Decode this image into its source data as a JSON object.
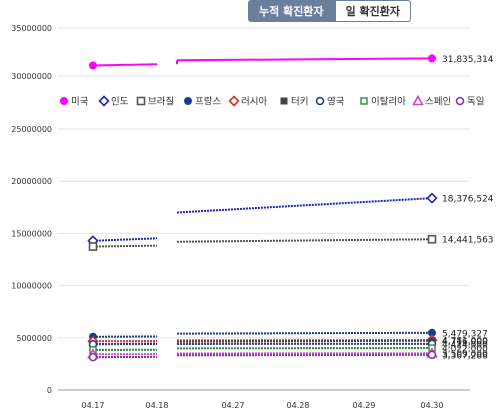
{
  "tabs": [
    {
      "label": "누적 확진환자",
      "active": true
    },
    {
      "label": "일 확진환자",
      "active": false
    }
  ],
  "chart_data": {
    "type": "line",
    "categories": [
      "04.17",
      "04.18",
      "04.27",
      "04.28",
      "04.29",
      "04.30"
    ],
    "upper_panel": {
      "yticks": [
        "35000000",
        "30000000"
      ],
      "ylim": [
        29000000,
        35000000
      ],
      "series": [
        {
          "name": "미국",
          "color": "#ff00ff",
          "values": [
            31100000,
            31220000,
            31640000,
            null,
            null,
            31835314
          ],
          "end_label": "31,835,314"
        }
      ]
    },
    "lower_panel": {
      "yticks": [
        "25000000",
        "20000000",
        "15000000",
        "10000000",
        "5000000",
        "0"
      ],
      "ylim": [
        0,
        25000000
      ],
      "series": [
        {
          "name": "인도",
          "color": "#2222bb",
          "values": [
            14290000,
            14530000,
            17000000,
            null,
            null,
            18376524
          ],
          "end_label": "18,376,524"
        },
        {
          "name": "브라질",
          "color": "#555555",
          "values": [
            13740000,
            13830000,
            14200000,
            null,
            null,
            14441563
          ],
          "end_label": "14,441,563"
        },
        {
          "name": "프랑스",
          "color": "#1a3a8a",
          "values": [
            5100000,
            5130000,
            5400000,
            null,
            null,
            5479327
          ],
          "end_label": "5,479,327"
        },
        {
          "name": "러시아",
          "color": "#d03030",
          "values": [
            4670000,
            4680000,
            4750000,
            null,
            null,
            4781000
          ],
          "end_label": "4,781,000"
        },
        {
          "name": "터키",
          "color": "#444444",
          "values": [
            4380000,
            4450000,
            4620000,
            null,
            null,
            4716000
          ],
          "end_label": "4,716,000"
        },
        {
          "name": "영국",
          "color": "#2a3a90",
          "values": [
            4390000,
            4395000,
            4410000,
            null,
            null,
            4424000
          ],
          "end_label": "4,424,000"
        },
        {
          "name": "이탈리아",
          "color": "#2a8a3a",
          "values": [
            3840000,
            3860000,
            3990000,
            null,
            null,
            4022000
          ],
          "end_label": "4,022,000"
        },
        {
          "name": "스페인",
          "color": "#cc44cc",
          "values": [
            3420000,
            3430000,
            3500000,
            null,
            null,
            3509000
          ],
          "end_label": "3,509,000"
        },
        {
          "name": "독일",
          "color": "#8833aa",
          "values": [
            3150000,
            3170000,
            3320000,
            null,
            null,
            3367288
          ],
          "end_label": "3,367,288"
        }
      ]
    },
    "legend_position": "middle"
  }
}
